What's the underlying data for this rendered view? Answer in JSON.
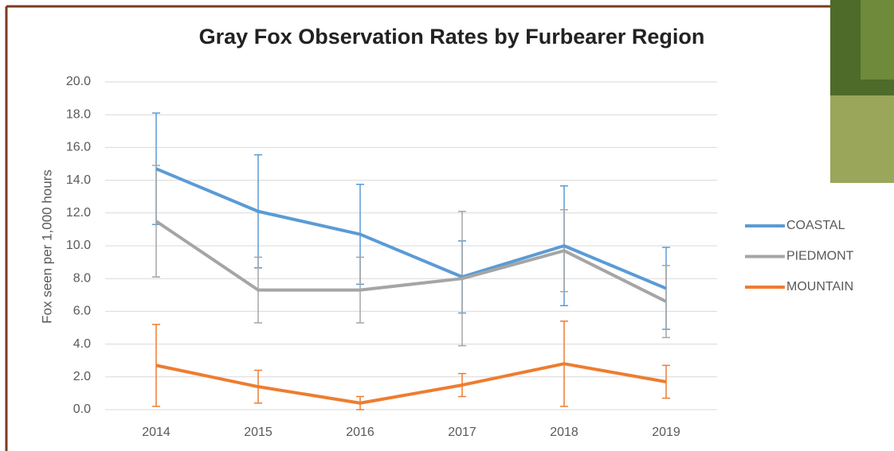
{
  "chart_data": {
    "type": "line",
    "title": "Gray Fox Observation Rates by Furbearer Region",
    "y_label": "Fox seen per 1,000 hours",
    "categories": [
      "2014",
      "2015",
      "2016",
      "2017",
      "2018",
      "2019"
    ],
    "series": [
      {
        "name": "COASTAL",
        "color": "#5b9bd5",
        "values": [
          14.7,
          12.1,
          10.7,
          8.1,
          10.0,
          7.4
        ],
        "errors": [
          3.4,
          3.45,
          3.05,
          2.2,
          3.65,
          2.5
        ]
      },
      {
        "name": "PIEDMONT",
        "color": "#a5a5a5",
        "values": [
          11.5,
          7.3,
          7.3,
          8.0,
          9.7,
          6.6
        ],
        "errors": [
          3.4,
          2.0,
          2.0,
          4.1,
          2.5,
          2.2
        ]
      },
      {
        "name": "MOUNTAIN",
        "color": "#ed7d31",
        "values": [
          2.7,
          1.4,
          0.4,
          1.5,
          2.8,
          1.7
        ],
        "errors": [
          2.5,
          1.0,
          0.4,
          0.7,
          2.6,
          1.0
        ]
      }
    ],
    "ylim": [
      0,
      20
    ],
    "yticks": [
      {
        "value": 0,
        "label": "0.0"
      },
      {
        "value": 2,
        "label": "2.0"
      },
      {
        "value": 4,
        "label": "4.0"
      },
      {
        "value": 6,
        "label": "6.0"
      },
      {
        "value": 8,
        "label": "8.0"
      },
      {
        "value": 10,
        "label": "10.0"
      },
      {
        "value": 12,
        "label": "12.0"
      },
      {
        "value": 14,
        "label": "14.0"
      },
      {
        "value": 16,
        "label": "16.0"
      },
      {
        "value": 18,
        "label": "18.0"
      },
      {
        "value": 20,
        "label": "20.0"
      }
    ],
    "grid": true,
    "legend": "right"
  }
}
